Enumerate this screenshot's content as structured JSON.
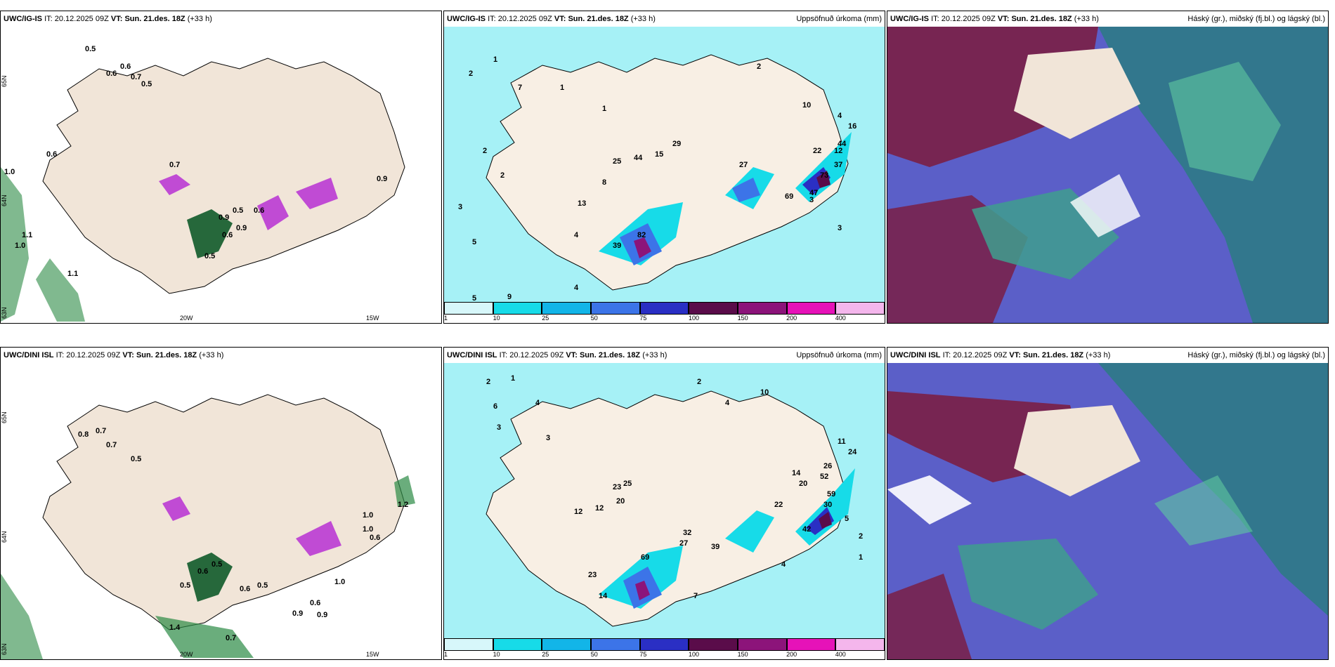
{
  "rows": [
    {
      "model": "UWC/IG-IS",
      "it_label": "IT:",
      "it_value": "20.12.2025 09Z",
      "vt_label": "VT:",
      "vt_value": "Sun. 21.des. 18Z",
      "lead": "(+33 h)",
      "wind_labels": [
        "0.5",
        "0.6",
        "0.6",
        "0.7",
        "0.5",
        "0.6",
        "0.7",
        "1.0",
        "1.1",
        "1.0",
        "0.5",
        "0.6",
        "0.9",
        "0.9",
        "0.5",
        "0.9",
        "1.1",
        "0.6"
      ],
      "precip_labels": [
        "2",
        "1",
        "2",
        "3",
        "4",
        "5",
        "1",
        "2",
        "7",
        "2",
        "3",
        "4",
        "10",
        "16",
        "12",
        "44",
        "37",
        "22",
        "47",
        "73",
        "69",
        "27",
        "82",
        "39",
        "29",
        "15",
        "25",
        "44",
        "13",
        "8",
        "5",
        "9",
        "4",
        "3",
        "1"
      ],
      "axis_labels": {
        "lat_top": "65N",
        "lat_mid": "64N",
        "lat_bot": "63N",
        "lon_left": "20W",
        "lon_right": "15W"
      }
    },
    {
      "model": "UWC/DINI ISL",
      "it_label": "IT:",
      "it_value": "20.12.2025 09Z",
      "vt_label": "VT:",
      "vt_value": "Sun. 21.des. 18Z",
      "lead": "(+33 h)",
      "wind_labels": [
        "0.8",
        "0.7",
        "0.7",
        "0.5",
        "0.6",
        "0.5",
        "0.6",
        "0.5",
        "0.5",
        "1.4",
        "0.6",
        "0.9",
        "1.0",
        "0.9",
        "0.7",
        "1.0",
        "1.2",
        "1.0",
        "0.6"
      ],
      "precip_labels": [
        "2",
        "1",
        "3",
        "6",
        "4",
        "3",
        "10",
        "2",
        "4",
        "11",
        "24",
        "26",
        "52",
        "20",
        "14",
        "22",
        "42",
        "30",
        "59",
        "23",
        "12",
        "25",
        "20",
        "12",
        "32",
        "27",
        "39",
        "69",
        "23",
        "14",
        "7",
        "4",
        "2",
        "5",
        "1"
      ],
      "axis_labels": {
        "lat_top": "65N",
        "lat_mid": "64N",
        "lat_bot": "63N",
        "lon_left": "20W",
        "lon_right": "15W"
      }
    }
  ],
  "precip_title": "Uppsöfnuð úrkoma (mm)",
  "cloud_title": "Háský (gr.), miðský (fj.bl.) og lágský (bl.)",
  "legend": {
    "ticks": [
      "1",
      "10",
      "25",
      "50",
      "75",
      "100",
      "150",
      "200",
      "400"
    ],
    "colors": [
      "#d7f7fa",
      "#17dbe8",
      "#12b5e8",
      "#3c74e8",
      "#2a2fc4",
      "#5a0c4a",
      "#8c147a",
      "#e612b8",
      "#f4b6ec"
    ]
  },
  "colors": {
    "land": "#f1e5d8",
    "sea_wind": "#ffffff",
    "sea_precip": "#a6f1f6",
    "sea_cloud": "#5b5fc8",
    "high_cloud": "#7a1f45",
    "mid_cloud": "#3f9e8e",
    "low_cloud": "#2f6ca0"
  }
}
